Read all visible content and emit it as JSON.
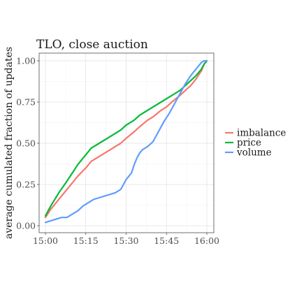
{
  "chart_data": {
    "type": "line",
    "title": "TLO, close auction",
    "xlabel": "",
    "ylabel": "average cumulated fraction of updates",
    "x_ticks": [
      "15:00",
      "15:15",
      "15:30",
      "15:45",
      "16:00"
    ],
    "x_tick_minutes": [
      0,
      15,
      30,
      45,
      60
    ],
    "xlim_minutes": [
      0,
      60
    ],
    "y_ticks": [
      "0.00",
      "0.25",
      "0.50",
      "0.75",
      "1.00"
    ],
    "y_tick_values": [
      0,
      0.25,
      0.5,
      0.75,
      1.0
    ],
    "ylim": [
      0,
      1
    ],
    "grid": true,
    "legend_position": "right",
    "series": [
      {
        "name": "imbalance",
        "color": "#F8766D",
        "x": [
          0,
          2,
          5,
          8,
          10,
          12,
          15,
          17,
          20,
          23,
          25,
          28,
          30,
          33,
          35,
          38,
          40,
          43,
          45,
          47,
          50,
          52,
          54,
          56,
          58,
          59,
          60
        ],
        "y": [
          0.05,
          0.1,
          0.16,
          0.22,
          0.26,
          0.3,
          0.35,
          0.39,
          0.42,
          0.45,
          0.47,
          0.5,
          0.53,
          0.57,
          0.6,
          0.64,
          0.66,
          0.7,
          0.72,
          0.75,
          0.79,
          0.82,
          0.85,
          0.89,
          0.94,
          0.98,
          1.0
        ]
      },
      {
        "name": "price",
        "color": "#00BA38",
        "x": [
          0,
          2,
          5,
          8,
          10,
          12,
          15,
          17,
          20,
          23,
          25,
          28,
          30,
          33,
          35,
          38,
          40,
          43,
          45,
          47,
          50,
          52,
          54,
          56,
          58,
          59,
          60
        ],
        "y": [
          0.06,
          0.12,
          0.2,
          0.27,
          0.32,
          0.37,
          0.43,
          0.47,
          0.5,
          0.53,
          0.55,
          0.58,
          0.61,
          0.64,
          0.67,
          0.7,
          0.72,
          0.75,
          0.77,
          0.79,
          0.82,
          0.85,
          0.88,
          0.91,
          0.95,
          0.98,
          1.0
        ]
      },
      {
        "name": "volume",
        "color": "#619CFF",
        "x": [
          0,
          2,
          4,
          6,
          8,
          10,
          12,
          14,
          16,
          18,
          20,
          22,
          24,
          26,
          28,
          29,
          30,
          32,
          33,
          34,
          35,
          36,
          38,
          40,
          42,
          44,
          46,
          48,
          50,
          52,
          54,
          56,
          57,
          58,
          59,
          60
        ],
        "y": [
          0.02,
          0.03,
          0.04,
          0.05,
          0.05,
          0.07,
          0.09,
          0.12,
          0.14,
          0.16,
          0.17,
          0.18,
          0.19,
          0.2,
          0.22,
          0.25,
          0.28,
          0.32,
          0.37,
          0.41,
          0.44,
          0.46,
          0.48,
          0.51,
          0.57,
          0.63,
          0.68,
          0.74,
          0.8,
          0.86,
          0.91,
          0.95,
          0.97,
          0.99,
          1.0,
          1.0
        ]
      }
    ]
  }
}
